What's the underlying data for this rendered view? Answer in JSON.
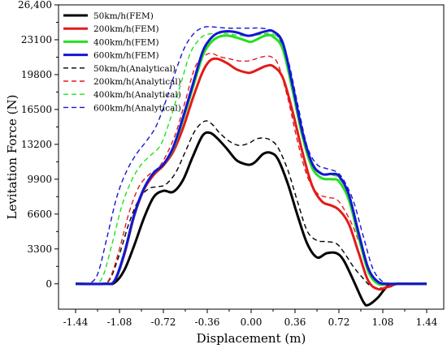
{
  "chart_data": {
    "type": "line",
    "title": "",
    "xlabel": "Displacement (m)",
    "ylabel": "Levitation Force (N)",
    "xlim": [
      -1.58,
      1.58
    ],
    "ylim": [
      -2400,
      26400
    ],
    "xticks": [
      -1.44,
      -1.08,
      -0.72,
      -0.36,
      0.0,
      0.36,
      0.72,
      1.08,
      1.44
    ],
    "xtick_labels": [
      "-1.44",
      "-1.08",
      "-0.72",
      "-0.36",
      "0.00",
      "0.36",
      "0.72",
      "1.08",
      "1.44"
    ],
    "yticks": [
      0,
      3300,
      6600,
      9900,
      13200,
      16500,
      19800,
      23100,
      26400
    ],
    "ytick_labels": [
      "0",
      "3300",
      "6600",
      "9900",
      "13200",
      "16500",
      "19800",
      "23100",
      "26,400"
    ],
    "legend_position": "top-left",
    "grid": false,
    "series": [
      {
        "name": "50km/h(FEM)",
        "color": "#000000",
        "dash": "solid",
        "x": [
          -1.44,
          -1.2,
          -1.12,
          -1.04,
          -0.96,
          -0.88,
          -0.8,
          -0.72,
          -0.64,
          -0.56,
          -0.48,
          -0.4,
          -0.34,
          -0.28,
          -0.2,
          -0.12,
          -0.04,
          0.0,
          0.04,
          0.1,
          0.16,
          0.22,
          0.3,
          0.38,
          0.46,
          0.54,
          0.62,
          0.7,
          0.76,
          0.84,
          0.92,
          0.96,
          1.04,
          1.12,
          1.2,
          1.3,
          1.44
        ],
        "y": [
          0,
          0,
          100,
          1300,
          3600,
          6200,
          8200,
          8800,
          8700,
          9800,
          12000,
          14000,
          14300,
          13800,
          12800,
          11700,
          11300,
          11300,
          11600,
          12300,
          12400,
          11800,
          9500,
          6500,
          3800,
          2500,
          2900,
          2900,
          2200,
          300,
          -1700,
          -2000,
          -1300,
          -200,
          0,
          0,
          0
        ]
      },
      {
        "name": "200km/h(FEM)",
        "color": "#e41a1a",
        "dash": "solid",
        "x": [
          -1.44,
          -1.2,
          -1.12,
          -1.04,
          -0.96,
          -0.88,
          -0.8,
          -0.72,
          -0.64,
          -0.56,
          -0.48,
          -0.4,
          -0.34,
          -0.28,
          -0.2,
          -0.12,
          -0.04,
          0.0,
          0.06,
          0.12,
          0.18,
          0.26,
          0.34,
          0.42,
          0.5,
          0.58,
          0.66,
          0.72,
          0.8,
          0.88,
          0.96,
          1.04,
          1.12,
          1.2,
          1.3,
          1.44
        ],
        "y": [
          0,
          0,
          300,
          2800,
          6400,
          8900,
          10300,
          11200,
          12500,
          14700,
          17500,
          20000,
          21100,
          21300,
          20900,
          20300,
          20000,
          20000,
          20300,
          20600,
          20600,
          19500,
          16300,
          12500,
          9300,
          7800,
          7400,
          7000,
          5700,
          3000,
          300,
          -500,
          -300,
          0,
          0,
          0
        ]
      },
      {
        "name": "400km/h(FEM)",
        "color": "#22e01e",
        "dash": "solid",
        "x": [
          -1.44,
          -1.2,
          -1.12,
          -1.04,
          -0.96,
          -0.88,
          -0.8,
          -0.72,
          -0.64,
          -0.56,
          -0.48,
          -0.4,
          -0.34,
          -0.28,
          -0.2,
          -0.12,
          -0.04,
          0.0,
          0.06,
          0.12,
          0.18,
          0.26,
          0.34,
          0.42,
          0.5,
          0.58,
          0.66,
          0.72,
          0.8,
          0.88,
          0.96,
          1.04,
          1.12,
          1.2,
          1.3,
          1.44
        ],
        "y": [
          0,
          0,
          300,
          2900,
          6500,
          9000,
          10500,
          11300,
          12800,
          15500,
          18500,
          21500,
          22700,
          23300,
          23500,
          23300,
          23000,
          22900,
          23200,
          23500,
          23400,
          22200,
          18300,
          14000,
          11000,
          10000,
          9900,
          9700,
          8000,
          4500,
          1200,
          0,
          0,
          0,
          0,
          0
        ]
      },
      {
        "name": "600km/h(FEM)",
        "color": "#1515d4",
        "dash": "solid",
        "x": [
          -1.44,
          -1.2,
          -1.12,
          -1.04,
          -0.96,
          -0.88,
          -0.8,
          -0.72,
          -0.64,
          -0.56,
          -0.48,
          -0.4,
          -0.34,
          -0.28,
          -0.2,
          -0.12,
          -0.04,
          0.0,
          0.06,
          0.12,
          0.18,
          0.26,
          0.34,
          0.42,
          0.5,
          0.58,
          0.66,
          0.72,
          0.8,
          0.88,
          0.96,
          1.04,
          1.12,
          1.2,
          1.3,
          1.44
        ],
        "y": [
          0,
          0,
          300,
          2900,
          6500,
          9000,
          10500,
          11300,
          12900,
          15700,
          18800,
          21900,
          23100,
          23700,
          23900,
          23800,
          23500,
          23500,
          23700,
          23900,
          23900,
          22800,
          18800,
          14400,
          11400,
          10400,
          10400,
          10200,
          8500,
          4900,
          1500,
          200,
          0,
          0,
          0,
          0
        ]
      },
      {
        "name": "50km/h(Analytical)",
        "color": "#000000",
        "dash": "dashed",
        "x": [
          -1.44,
          -1.24,
          -1.16,
          -1.08,
          -1.0,
          -0.92,
          -0.84,
          -0.76,
          -0.7,
          -0.62,
          -0.54,
          -0.46,
          -0.38,
          -0.32,
          -0.26,
          -0.18,
          -0.1,
          -0.02,
          0.04,
          0.1,
          0.16,
          0.22,
          0.3,
          0.38,
          0.46,
          0.54,
          0.62,
          0.7,
          0.76,
          0.84,
          0.92,
          0.98,
          1.06,
          1.14,
          1.2,
          1.3,
          1.44
        ],
        "y": [
          0,
          0,
          400,
          2800,
          5800,
          8000,
          9000,
          9200,
          9400,
          10500,
          12500,
          14500,
          15400,
          15100,
          14300,
          13500,
          13100,
          13300,
          13700,
          13800,
          13600,
          12900,
          10800,
          7800,
          5000,
          4100,
          4000,
          3800,
          3000,
          1600,
          500,
          -200,
          -400,
          -300,
          0,
          0,
          0
        ]
      },
      {
        "name": "200km/h(Analytical)",
        "color": "#e41a1a",
        "dash": "dashed",
        "x": [
          -1.44,
          -1.24,
          -1.16,
          -1.08,
          -1.0,
          -0.92,
          -0.84,
          -0.76,
          -0.7,
          -0.62,
          -0.54,
          -0.46,
          -0.38,
          -0.32,
          -0.26,
          -0.18,
          -0.1,
          -0.02,
          0.04,
          0.1,
          0.16,
          0.22,
          0.3,
          0.38,
          0.46,
          0.54,
          0.62,
          0.7,
          0.76,
          0.84,
          0.92,
          0.98,
          1.06,
          1.14,
          1.2,
          1.3,
          1.44
        ],
        "y": [
          0,
          0,
          500,
          3300,
          6800,
          9200,
          10300,
          11000,
          12100,
          14200,
          17300,
          20500,
          21600,
          21800,
          21500,
          21300,
          21100,
          21100,
          21300,
          21500,
          21500,
          20800,
          17600,
          13500,
          10200,
          8600,
          8200,
          8000,
          7100,
          5300,
          2800,
          900,
          -100,
          0,
          0,
          0,
          0
        ]
      },
      {
        "name": "400km/h(Analytical)",
        "color": "#22e01e",
        "dash": "dashed",
        "x": [
          -1.44,
          -1.3,
          -1.22,
          -1.14,
          -1.06,
          -0.98,
          -0.9,
          -0.82,
          -0.74,
          -0.66,
          -0.58,
          -0.5,
          -0.42,
          -0.36,
          -0.28,
          -0.2,
          -0.1,
          0.0,
          0.08,
          0.14,
          0.2,
          0.26,
          0.34,
          0.42,
          0.5,
          0.58,
          0.66,
          0.72,
          0.8,
          0.88,
          0.96,
          1.04,
          1.12,
          1.2,
          1.3,
          1.44
        ],
        "y": [
          0,
          0,
          600,
          3800,
          7400,
          9800,
          11300,
          12200,
          13200,
          15700,
          18800,
          21800,
          23200,
          23600,
          23700,
          23700,
          23500,
          23500,
          23600,
          23700,
          23500,
          22500,
          18800,
          14500,
          11500,
          10500,
          10300,
          10000,
          8500,
          5000,
          1600,
          200,
          0,
          0,
          0,
          0
        ]
      },
      {
        "name": "600km/h(Analytical)",
        "color": "#1515d4",
        "dash": "dashed",
        "x": [
          -1.44,
          -1.34,
          -1.26,
          -1.18,
          -1.1,
          -1.02,
          -0.94,
          -0.86,
          -0.78,
          -0.7,
          -0.62,
          -0.54,
          -0.46,
          -0.38,
          -0.3,
          -0.2,
          -0.1,
          0.0,
          0.08,
          0.16,
          0.22,
          0.3,
          0.38,
          0.46,
          0.54,
          0.62,
          0.7,
          0.76,
          0.84,
          0.92,
          1.0,
          1.08,
          1.16,
          1.24,
          1.32,
          1.44
        ],
        "y": [
          0,
          0,
          900,
          4500,
          8300,
          10700,
          12300,
          13500,
          14900,
          17300,
          20100,
          22500,
          23800,
          24300,
          24300,
          24200,
          24200,
          24200,
          24200,
          24000,
          23400,
          21300,
          17100,
          13000,
          11300,
          10900,
          10600,
          9800,
          7800,
          4500,
          1400,
          200,
          0,
          0,
          0,
          0
        ]
      }
    ]
  }
}
